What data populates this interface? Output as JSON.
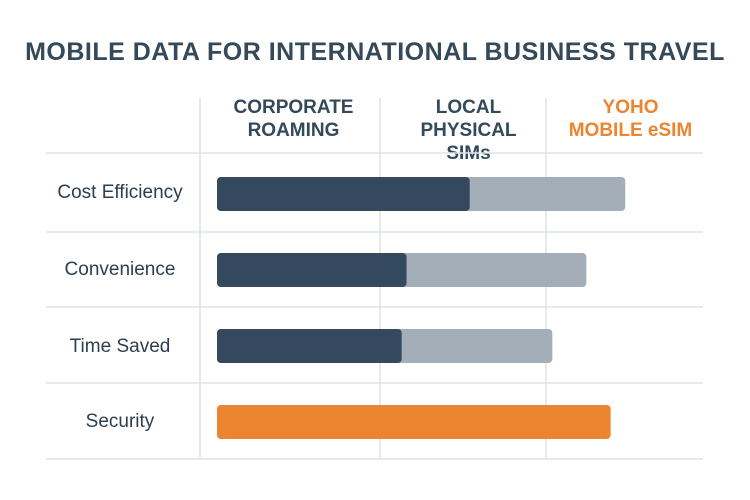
{
  "title": "MOBILE DATA FOR INTERNATIONAL BUSINESS TRAVEL",
  "columns": [
    {
      "line1": "CORPORATE",
      "line2": "ROAMING"
    },
    {
      "line1": "LOCAL PHYSICAL",
      "line2": "SIMs"
    },
    {
      "line1": "YOHO",
      "line2": "MOBILE eSIM"
    }
  ],
  "rows": [
    {
      "label": "Cost Efficiency"
    },
    {
      "label": "Convenience"
    },
    {
      "label": "Time Saved"
    },
    {
      "label": "Security"
    }
  ],
  "colors": {
    "dark": "#34495e",
    "light": "#a4aeb8",
    "accent": "#ec8530",
    "grid": "#dfe3e7"
  },
  "chart_data": {
    "type": "bar",
    "orientation": "horizontal",
    "title": "MOBILE DATA FOR INTERNATIONAL BUSINESS TRAVEL",
    "categories": [
      "Cost Efficiency",
      "Convenience",
      "Time Saved",
      "Security"
    ],
    "column_labels": [
      "CORPORATE ROAMING",
      "LOCAL PHYSICAL SIMs",
      "YOHO MOBILE eSIM"
    ],
    "xlim": [
      0,
      1
    ],
    "grid": true,
    "legend": "column headers at top",
    "bars": [
      {
        "category": "Cost Efficiency",
        "dark": 0.52,
        "total": 0.84
      },
      {
        "category": "Convenience",
        "dark": 0.39,
        "total": 0.76
      },
      {
        "category": "Time Saved",
        "dark": 0.38,
        "total": 0.69
      },
      {
        "category": "Security",
        "accent": 0.81
      }
    ]
  }
}
